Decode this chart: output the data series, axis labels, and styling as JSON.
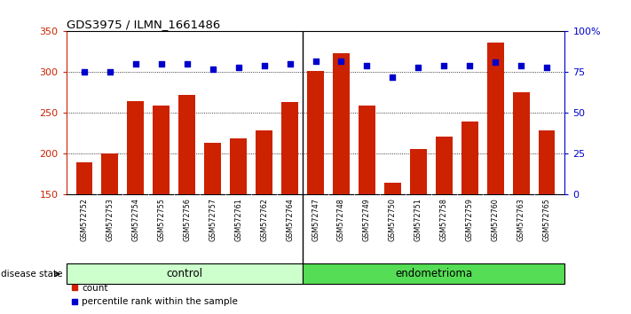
{
  "title": "GDS3975 / ILMN_1661486",
  "samples": [
    "GSM572752",
    "GSM572753",
    "GSM572754",
    "GSM572755",
    "GSM572756",
    "GSM572757",
    "GSM572761",
    "GSM572762",
    "GSM572764",
    "GSM572747",
    "GSM572748",
    "GSM572749",
    "GSM572750",
    "GSM572751",
    "GSM572758",
    "GSM572759",
    "GSM572760",
    "GSM572763",
    "GSM572765"
  ],
  "counts": [
    190,
    201,
    265,
    259,
    272,
    214,
    219,
    229,
    263,
    302,
    323,
    259,
    165,
    206,
    221,
    240,
    336,
    276,
    229
  ],
  "percentiles": [
    75,
    75,
    80,
    80,
    80,
    77,
    78,
    79,
    80,
    82,
    82,
    79,
    72,
    78,
    79,
    79,
    81,
    79,
    78
  ],
  "group_labels": [
    "control",
    "endometrioma"
  ],
  "group_sizes": [
    9,
    10
  ],
  "ylim_left": [
    150,
    350
  ],
  "ylim_right": [
    0,
    100
  ],
  "yticks_left": [
    150,
    200,
    250,
    300,
    350
  ],
  "yticks_right": [
    0,
    25,
    50,
    75,
    100
  ],
  "bar_color": "#cc2200",
  "dot_color": "#0000cc",
  "plot_bg": "#ffffff",
  "tick_bg": "#d0d0d0",
  "group_color_control": "#ccffcc",
  "group_color_endo": "#55dd55",
  "disease_state_label": "disease state",
  "legend_labels": [
    "count",
    "percentile rank within the sample"
  ]
}
